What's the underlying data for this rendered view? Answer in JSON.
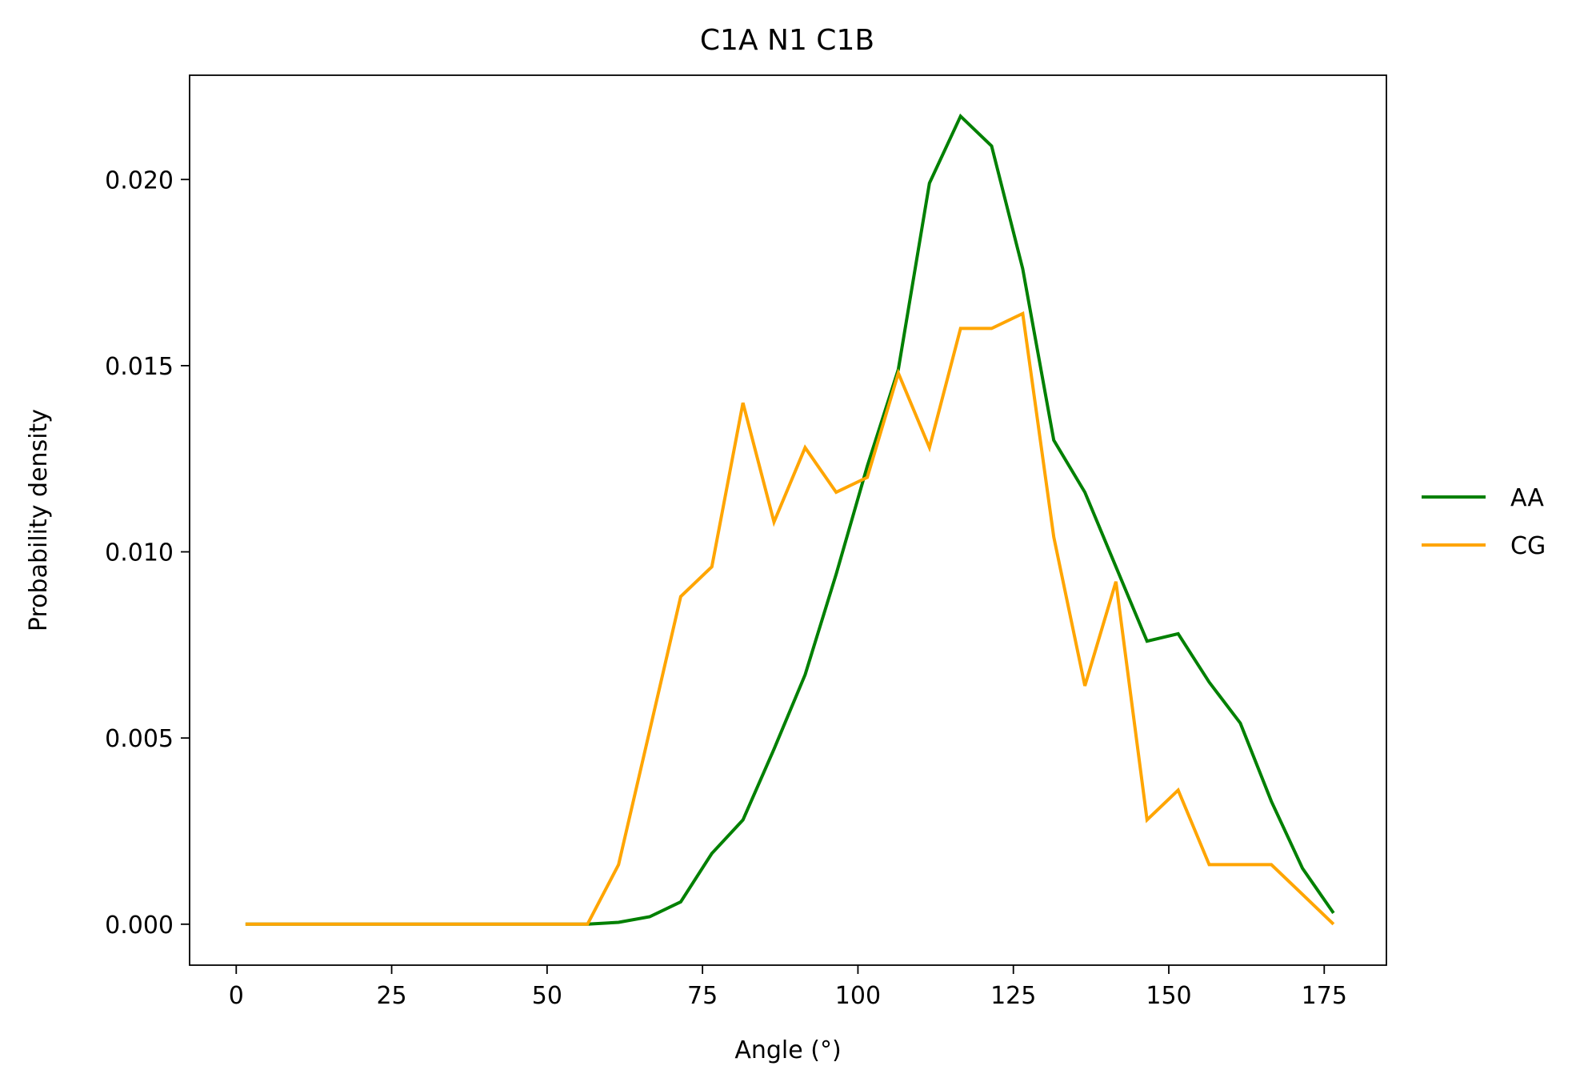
{
  "chart_data": {
    "type": "line",
    "title": "C1A N1 C1B",
    "xlabel": "Angle (°)",
    "ylabel": "Probability density",
    "xlim": [
      -7.5,
      185
    ],
    "ylim": [
      -0.0011,
      0.0228
    ],
    "xticks": [
      0,
      25,
      50,
      75,
      100,
      125,
      150,
      175
    ],
    "xtick_labels": [
      "0",
      "25",
      "50",
      "75",
      "100",
      "125",
      "150",
      "175"
    ],
    "yticks": [
      0.0,
      0.005,
      0.01,
      0.015,
      0.02
    ],
    "ytick_labels": [
      "0.000",
      "0.005",
      "0.010",
      "0.015",
      "0.020"
    ],
    "grid": false,
    "legend_position": "right",
    "x": [
      1.5,
      6.5,
      11.5,
      16.5,
      21.5,
      26.5,
      31.5,
      36.5,
      41.5,
      46.5,
      51.5,
      56.5,
      61.5,
      66.5,
      71.5,
      76.5,
      81.5,
      86.5,
      91.5,
      96.5,
      101.5,
      106.5,
      111.5,
      116.5,
      121.5,
      126.5,
      131.5,
      136.5,
      141.5,
      146.5,
      151.5,
      156.5,
      161.5,
      166.5,
      171.5,
      176.5
    ],
    "series": [
      {
        "name": "AA",
        "color": "#008000",
        "values": [
          0,
          0,
          0,
          0,
          0,
          0,
          0,
          0,
          0,
          0,
          0,
          0,
          5e-05,
          0.0002,
          0.0006,
          0.0019,
          0.0028,
          0.0047,
          0.0067,
          0.0094,
          0.0123,
          0.0149,
          0.0199,
          0.0217,
          0.0209,
          0.0176,
          0.013,
          0.0116,
          0.0096,
          0.0076,
          0.0078,
          0.0065,
          0.0054,
          0.0033,
          0.0015,
          0.0003
        ]
      },
      {
        "name": "CG",
        "color": "#ffa500",
        "values": [
          0,
          0,
          0,
          0,
          0,
          0,
          0,
          0,
          0,
          0,
          0,
          0,
          0.0016,
          0.0052,
          0.0088,
          0.0096,
          0.014,
          0.0108,
          0.0128,
          0.0116,
          0.012,
          0.0148,
          0.0128,
          0.016,
          0.016,
          0.0164,
          0.0104,
          0.0064,
          0.0092,
          0.0028,
          0.0036,
          0.0016,
          0.0016,
          0.0016,
          0.0008,
          0.0
        ]
      }
    ]
  }
}
